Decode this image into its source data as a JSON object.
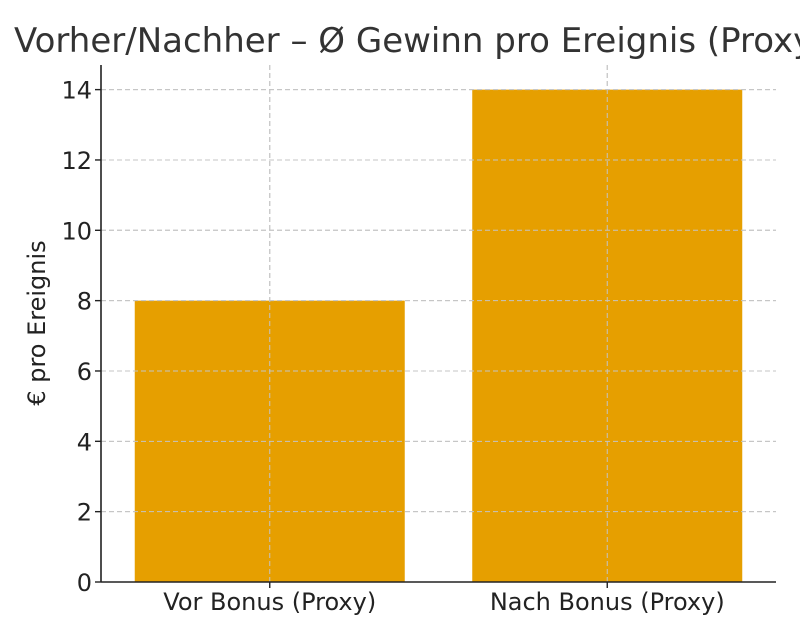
{
  "chart_data": {
    "type": "bar",
    "title": "Vorher/Nachher – Ø Gewinn pro Ereignis (Proxy)",
    "xlabel": "",
    "ylabel": "€ pro Ereignis",
    "categories": [
      "Vor Bonus (Proxy)",
      "Nach Bonus (Proxy)"
    ],
    "values": [
      8,
      14
    ],
    "ylim": [
      0,
      14.7
    ],
    "yticks": [
      0,
      2,
      4,
      6,
      8,
      10,
      12,
      14
    ],
    "grid": true,
    "colors": [
      "#E69F00",
      "#E69F00"
    ]
  }
}
